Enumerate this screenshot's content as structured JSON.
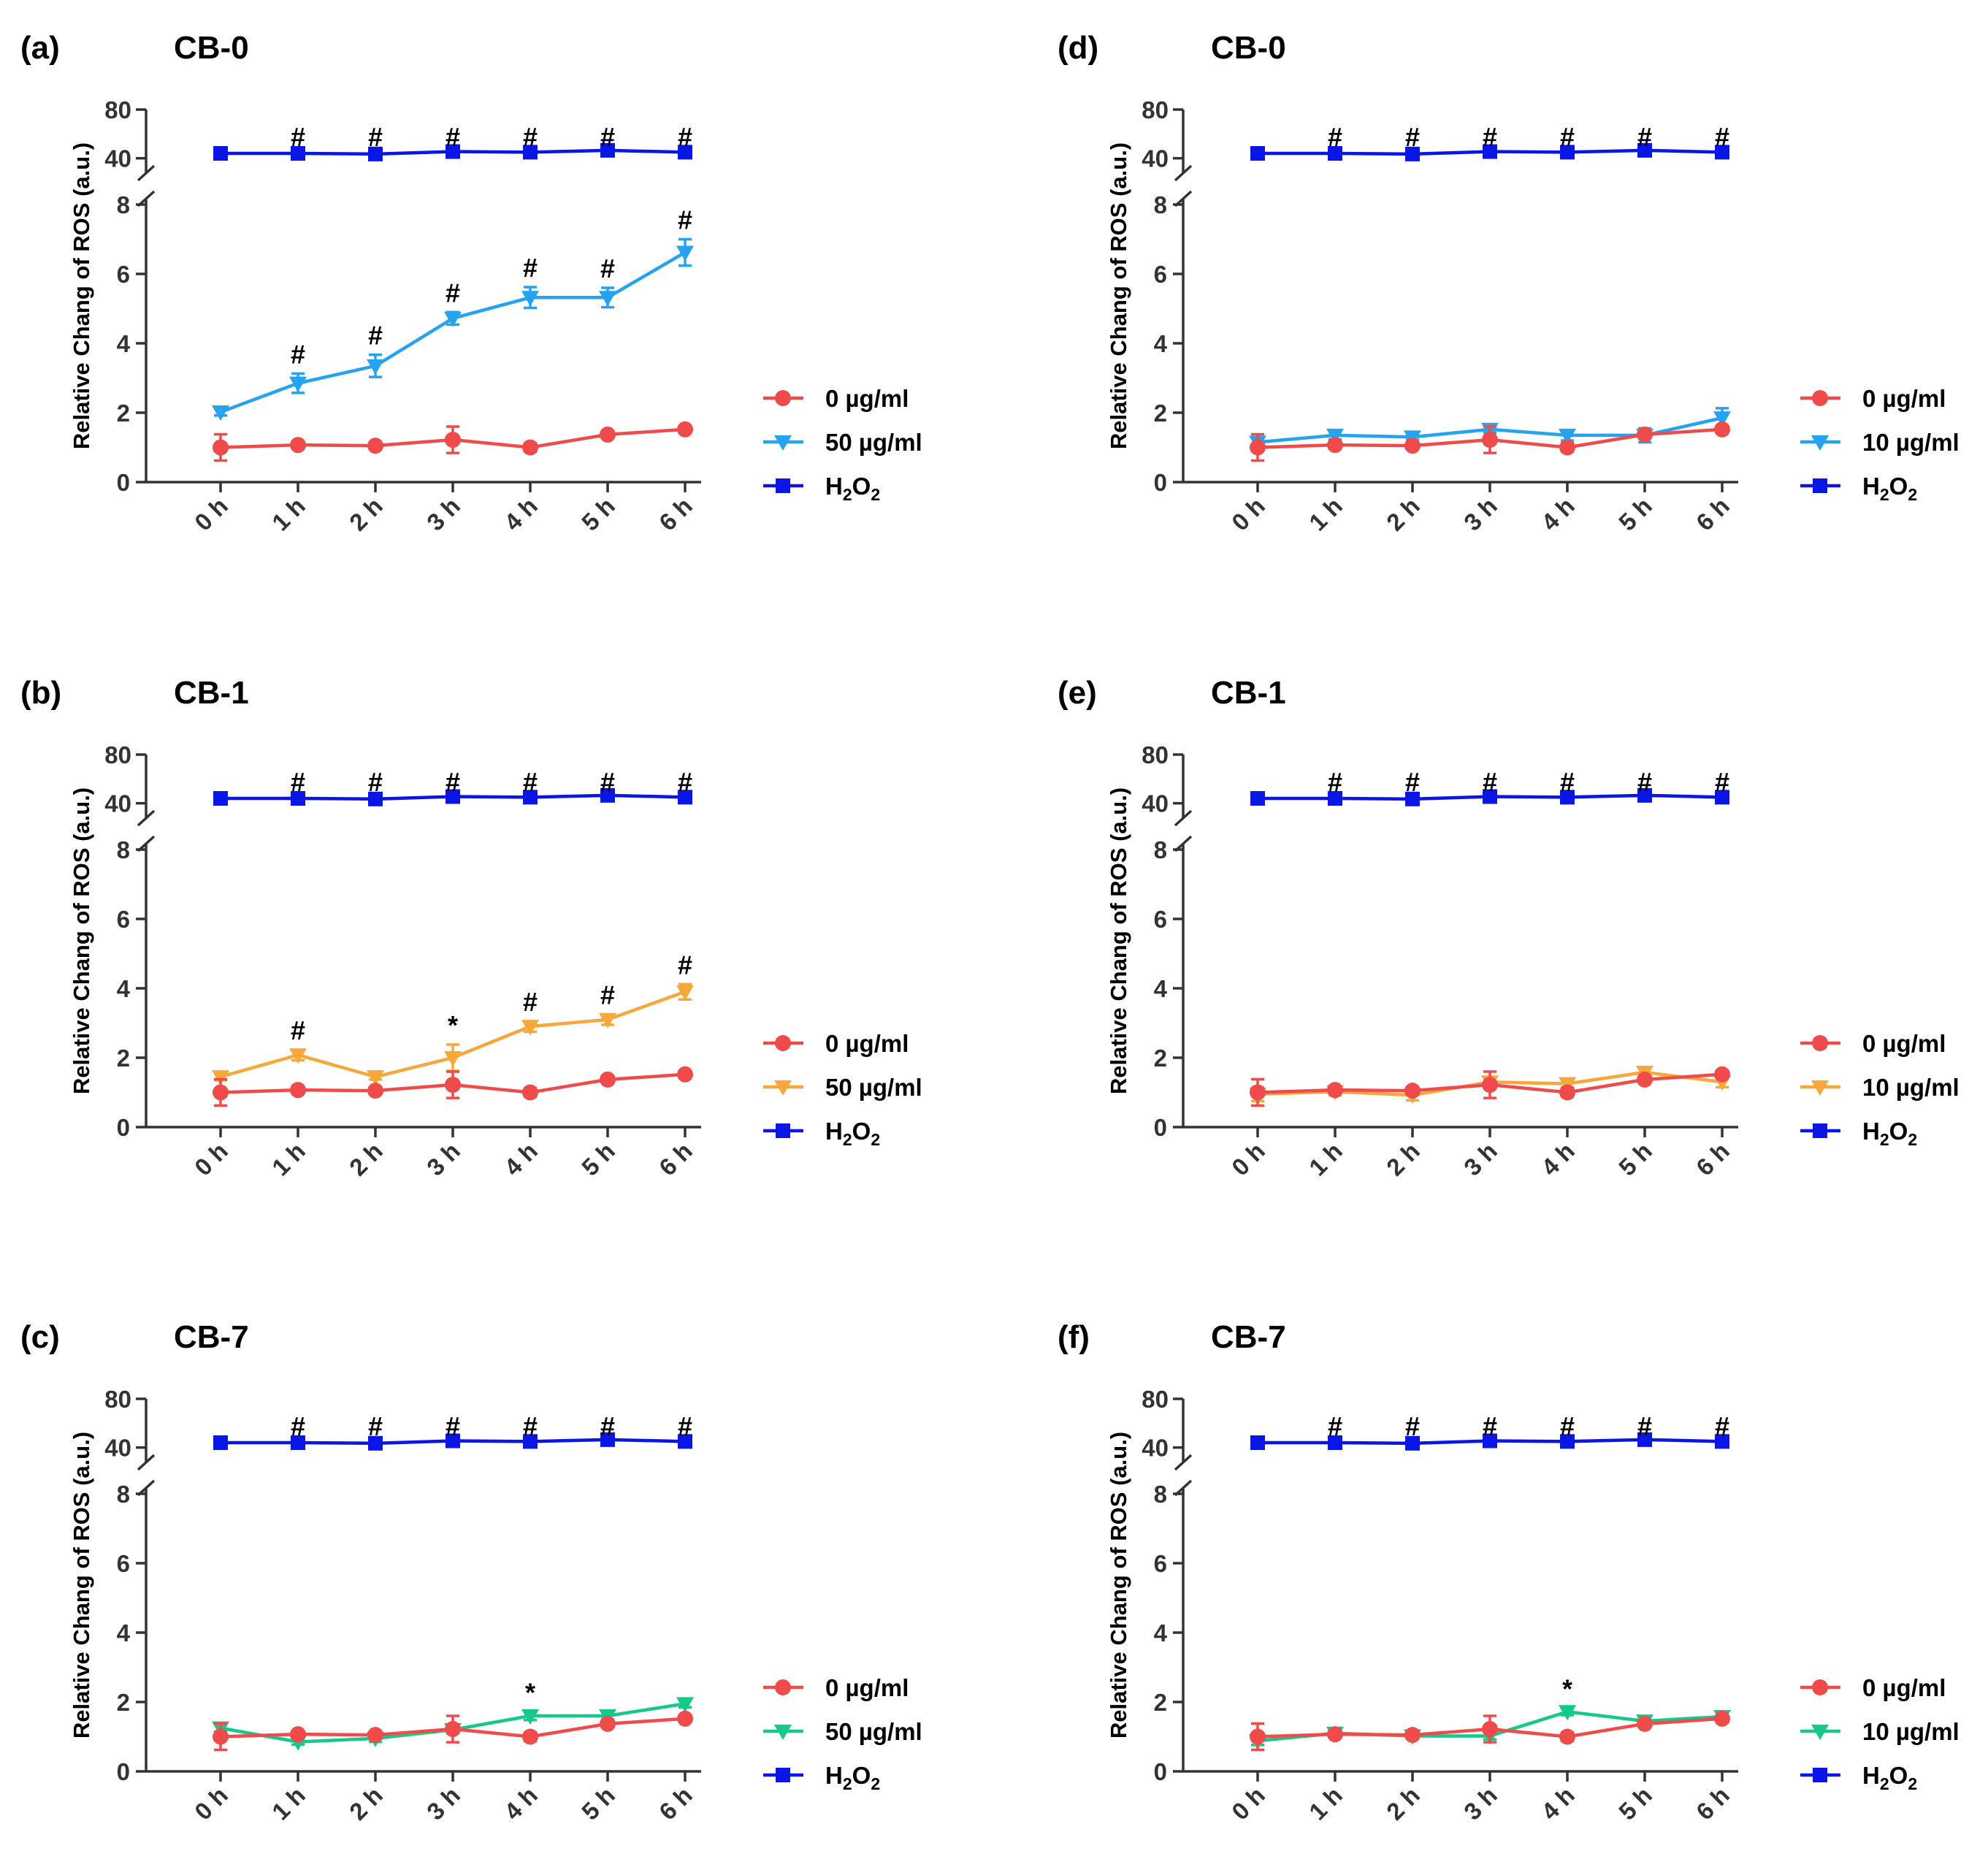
{
  "colors": {
    "control": "#f04b4b",
    "h2o2": "#0a16e6",
    "light_blue": "#26a3f0",
    "orange": "#f8a83a",
    "green": "#15c98a",
    "axis": "#333333"
  },
  "y_axis_label": "Relative Chang of  ROS (a.u.)",
  "x_ticks": [
    "0 h",
    "1 h",
    "2 h",
    "3 h",
    "4 h",
    "5 h",
    "6 h"
  ],
  "upper_ticks": [
    "80",
    "40"
  ],
  "lower_ticks": [
    "8",
    "6",
    "4",
    "2",
    "0"
  ],
  "chart_data": [
    {
      "type": "line",
      "panel": "(a)",
      "title": "CB-0",
      "ylabel": "Relative Chang of  ROS (a.u.)",
      "categories": [
        "0 h",
        "1 h",
        "2 h",
        "3 h",
        "4 h",
        "5 h",
        "6 h"
      ],
      "ylim_upper": [
        35,
        80
      ],
      "ylim_lower": [
        0,
        8
      ],
      "h2o2_markers": [
        "",
        "#",
        "#",
        "#",
        "#",
        "#",
        "#"
      ],
      "series": [
        {
          "name": "0 µg/ml",
          "marker": "circle",
          "color": "#f04b4b",
          "values": [
            1.0,
            1.07,
            1.05,
            1.22,
            1.0,
            1.37,
            1.52
          ],
          "errors": [
            0.38,
            0.05,
            0.04,
            0.38,
            0.12,
            0.06,
            0.09
          ]
        },
        {
          "name": "50 µg/ml",
          "marker": "triangle-down",
          "color": "#26a3f0",
          "values": [
            2.02,
            2.85,
            3.35,
            4.72,
            5.32,
            5.32,
            6.62
          ],
          "errors": [
            0.1,
            0.28,
            0.32,
            0.18,
            0.3,
            0.28,
            0.38
          ],
          "markers": [
            "",
            "#",
            "#",
            "#",
            "#",
            "#",
            "#"
          ]
        },
        {
          "name": "H2O2",
          "marker": "square",
          "color": "#0a16e6",
          "values": [
            44,
            44,
            43.5,
            45.5,
            45,
            46.5,
            45
          ],
          "errors": [
            0,
            0,
            0,
            0,
            0,
            0,
            0
          ]
        }
      ]
    },
    {
      "type": "line",
      "panel": "(b)",
      "title": "CB-1",
      "ylabel": "Relative Chang of  ROS (a.u.)",
      "categories": [
        "0 h",
        "1 h",
        "2 h",
        "3 h",
        "4 h",
        "5 h",
        "6 h"
      ],
      "ylim_upper": [
        35,
        80
      ],
      "ylim_lower": [
        0,
        8
      ],
      "h2o2_markers": [
        "",
        "#",
        "#",
        "#",
        "#",
        "#",
        "#"
      ],
      "series": [
        {
          "name": "0 µg/ml",
          "marker": "circle",
          "color": "#f04b4b",
          "values": [
            1.0,
            1.07,
            1.05,
            1.22,
            1.0,
            1.37,
            1.52
          ],
          "errors": [
            0.38,
            0.05,
            0.04,
            0.38,
            0.12,
            0.06,
            0.09
          ]
        },
        {
          "name": "50 µg/ml",
          "marker": "triangle-down",
          "color": "#f8a83a",
          "values": [
            1.45,
            2.08,
            1.45,
            2.0,
            2.9,
            3.1,
            3.9
          ],
          "errors": [
            0.1,
            0.15,
            0.08,
            0.38,
            0.15,
            0.15,
            0.22
          ],
          "markers": [
            "",
            "#",
            "",
            "*",
            "#",
            "#",
            "#"
          ]
        },
        {
          "name": "H2O2",
          "marker": "square",
          "color": "#0a16e6",
          "values": [
            44,
            44,
            43.5,
            45.5,
            45,
            46.5,
            45
          ],
          "errors": [
            0,
            0,
            0,
            0,
            0,
            0,
            0
          ]
        }
      ]
    },
    {
      "type": "line",
      "panel": "(c)",
      "title": "CB-7",
      "ylabel": "Relative Chang of  ROS (a.u.)",
      "categories": [
        "0 h",
        "1 h",
        "2 h",
        "3 h",
        "4 h",
        "5 h",
        "6 h"
      ],
      "ylim_upper": [
        35,
        80
      ],
      "ylim_lower": [
        0,
        8
      ],
      "h2o2_markers": [
        "",
        "#",
        "#",
        "#",
        "#",
        "#",
        "#"
      ],
      "series": [
        {
          "name": "0 µg/ml",
          "marker": "circle",
          "color": "#f04b4b",
          "values": [
            1.0,
            1.07,
            1.05,
            1.22,
            1.0,
            1.37,
            1.52
          ],
          "errors": [
            0.38,
            0.05,
            0.04,
            0.38,
            0.12,
            0.06,
            0.09
          ]
        },
        {
          "name": "50 µg/ml",
          "marker": "triangle-down",
          "color": "#15c98a",
          "values": [
            1.25,
            0.85,
            0.95,
            1.2,
            1.6,
            1.6,
            1.95
          ],
          "errors": [
            0.1,
            0.08,
            0.1,
            0.1,
            0.12,
            0.1,
            0.1
          ],
          "markers": [
            "",
            "",
            "",
            "",
            "*",
            "",
            ""
          ]
        },
        {
          "name": "H2O2",
          "marker": "square",
          "color": "#0a16e6",
          "values": [
            44,
            44,
            43.5,
            45.5,
            45,
            46.5,
            45
          ],
          "errors": [
            0,
            0,
            0,
            0,
            0,
            0,
            0
          ]
        }
      ]
    },
    {
      "type": "line",
      "panel": "(d)",
      "title": "CB-0",
      "ylabel": "Relative Chang of  ROS (a.u.)",
      "categories": [
        "0 h",
        "1 h",
        "2 h",
        "3 h",
        "4 h",
        "5 h",
        "6 h"
      ],
      "ylim_upper": [
        35,
        80
      ],
      "ylim_lower": [
        0,
        8
      ],
      "h2o2_markers": [
        "",
        "#",
        "#",
        "#",
        "#",
        "#",
        "#"
      ],
      "series": [
        {
          "name": "0 µg/ml",
          "marker": "circle",
          "color": "#f04b4b",
          "values": [
            1.0,
            1.07,
            1.05,
            1.22,
            1.0,
            1.37,
            1.52
          ],
          "errors": [
            0.38,
            0.05,
            0.04,
            0.38,
            0.12,
            0.06,
            0.09
          ]
        },
        {
          "name": "10 µg/ml",
          "marker": "triangle-down",
          "color": "#26a3f0",
          "values": [
            1.15,
            1.35,
            1.3,
            1.52,
            1.35,
            1.35,
            1.85
          ],
          "errors": [
            0.15,
            0.12,
            0.08,
            0.1,
            0.15,
            0.2,
            0.28
          ],
          "markers": [
            "",
            "",
            "",
            "",
            "",
            "",
            ""
          ]
        },
        {
          "name": "H2O2",
          "marker": "square",
          "color": "#0a16e6",
          "values": [
            44,
            44,
            43.5,
            45.5,
            45,
            46.5,
            45
          ],
          "errors": [
            0,
            0,
            0,
            0,
            0,
            0,
            0
          ]
        }
      ]
    },
    {
      "type": "line",
      "panel": "(e)",
      "title": "CB-1",
      "ylabel": "Relative Chang of  ROS (a.u.)",
      "categories": [
        "0 h",
        "1 h",
        "2 h",
        "3 h",
        "4 h",
        "5 h",
        "6 h"
      ],
      "ylim_upper": [
        35,
        80
      ],
      "ylim_lower": [
        0,
        8
      ],
      "h2o2_markers": [
        "",
        "#",
        "#",
        "#",
        "#",
        "#",
        "#"
      ],
      "series": [
        {
          "name": "0 µg/ml",
          "marker": "circle",
          "color": "#f04b4b",
          "values": [
            1.0,
            1.07,
            1.05,
            1.22,
            1.0,
            1.37,
            1.52
          ],
          "errors": [
            0.38,
            0.05,
            0.04,
            0.38,
            0.12,
            0.06,
            0.09
          ]
        },
        {
          "name": "10 µg/ml",
          "marker": "triangle-down",
          "color": "#f8a83a",
          "values": [
            0.95,
            1.02,
            0.92,
            1.3,
            1.25,
            1.58,
            1.3
          ],
          "errors": [
            0.2,
            0.1,
            0.15,
            0.15,
            0.1,
            0.12,
            0.15
          ],
          "markers": [
            "",
            "",
            "",
            "",
            "",
            "",
            ""
          ]
        },
        {
          "name": "H2O2",
          "marker": "square",
          "color": "#0a16e6",
          "values": [
            44,
            44,
            43.5,
            45.5,
            45,
            46.5,
            45
          ],
          "errors": [
            0,
            0,
            0,
            0,
            0,
            0,
            0
          ]
        }
      ]
    },
    {
      "type": "line",
      "panel": "(f)",
      "title": "CB-7",
      "ylabel": "Relative Chang of  ROS (a.u.)",
      "categories": [
        "0 h",
        "1 h",
        "2 h",
        "3 h",
        "4 h",
        "5 h",
        "6 h"
      ],
      "ylim_upper": [
        35,
        80
      ],
      "ylim_lower": [
        0,
        8
      ],
      "h2o2_markers": [
        "",
        "#",
        "#",
        "#",
        "#",
        "#",
        "#"
      ],
      "series": [
        {
          "name": "0 µg/ml",
          "marker": "circle",
          "color": "#f04b4b",
          "values": [
            1.0,
            1.07,
            1.05,
            1.22,
            1.0,
            1.37,
            1.52
          ],
          "errors": [
            0.38,
            0.05,
            0.04,
            0.38,
            0.12,
            0.06,
            0.09
          ]
        },
        {
          "name": "10 µg/ml",
          "marker": "triangle-down",
          "color": "#15c98a",
          "values": [
            0.88,
            1.1,
            1.02,
            1.02,
            1.72,
            1.45,
            1.58
          ],
          "errors": [
            0.12,
            0.08,
            0.08,
            0.1,
            0.1,
            0.08,
            0.1
          ],
          "markers": [
            "",
            "",
            "",
            "",
            "*",
            "",
            ""
          ]
        },
        {
          "name": "H2O2",
          "marker": "square",
          "color": "#0a16e6",
          "values": [
            44,
            44,
            43.5,
            45.5,
            45,
            46.5,
            45
          ],
          "errors": [
            0,
            0,
            0,
            0,
            0,
            0,
            0
          ]
        }
      ]
    }
  ]
}
